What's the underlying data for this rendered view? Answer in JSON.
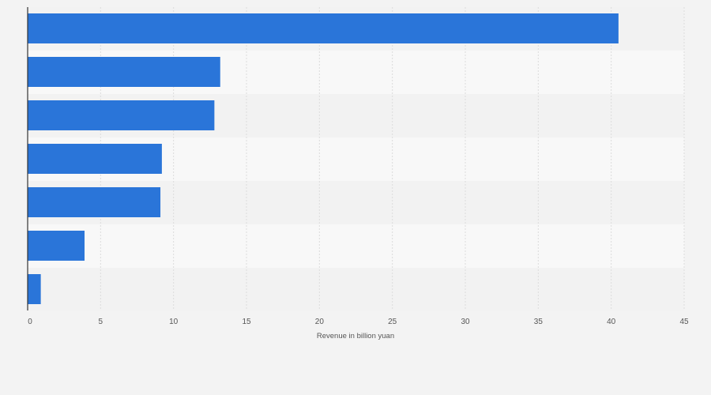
{
  "chart_data": {
    "type": "bar",
    "orientation": "horizontal",
    "categories": [
      "",
      "",
      "",
      "",
      "",
      "",
      ""
    ],
    "values": [
      40.5,
      13.2,
      12.8,
      9.2,
      9.1,
      3.9,
      0.9
    ],
    "title": "",
    "xlabel": "Revenue in billion yuan",
    "ylabel": "",
    "xlim": [
      0,
      45
    ],
    "xticks": [
      0,
      5,
      10,
      15,
      20,
      25,
      30,
      35,
      40,
      45
    ],
    "grid": true,
    "colors": {
      "bar": "#2a75d9",
      "band_dark": "#f2f2f2",
      "band_light": "#f8f8f8",
      "grid": "#dcdcdc",
      "axis": "#333333"
    }
  }
}
